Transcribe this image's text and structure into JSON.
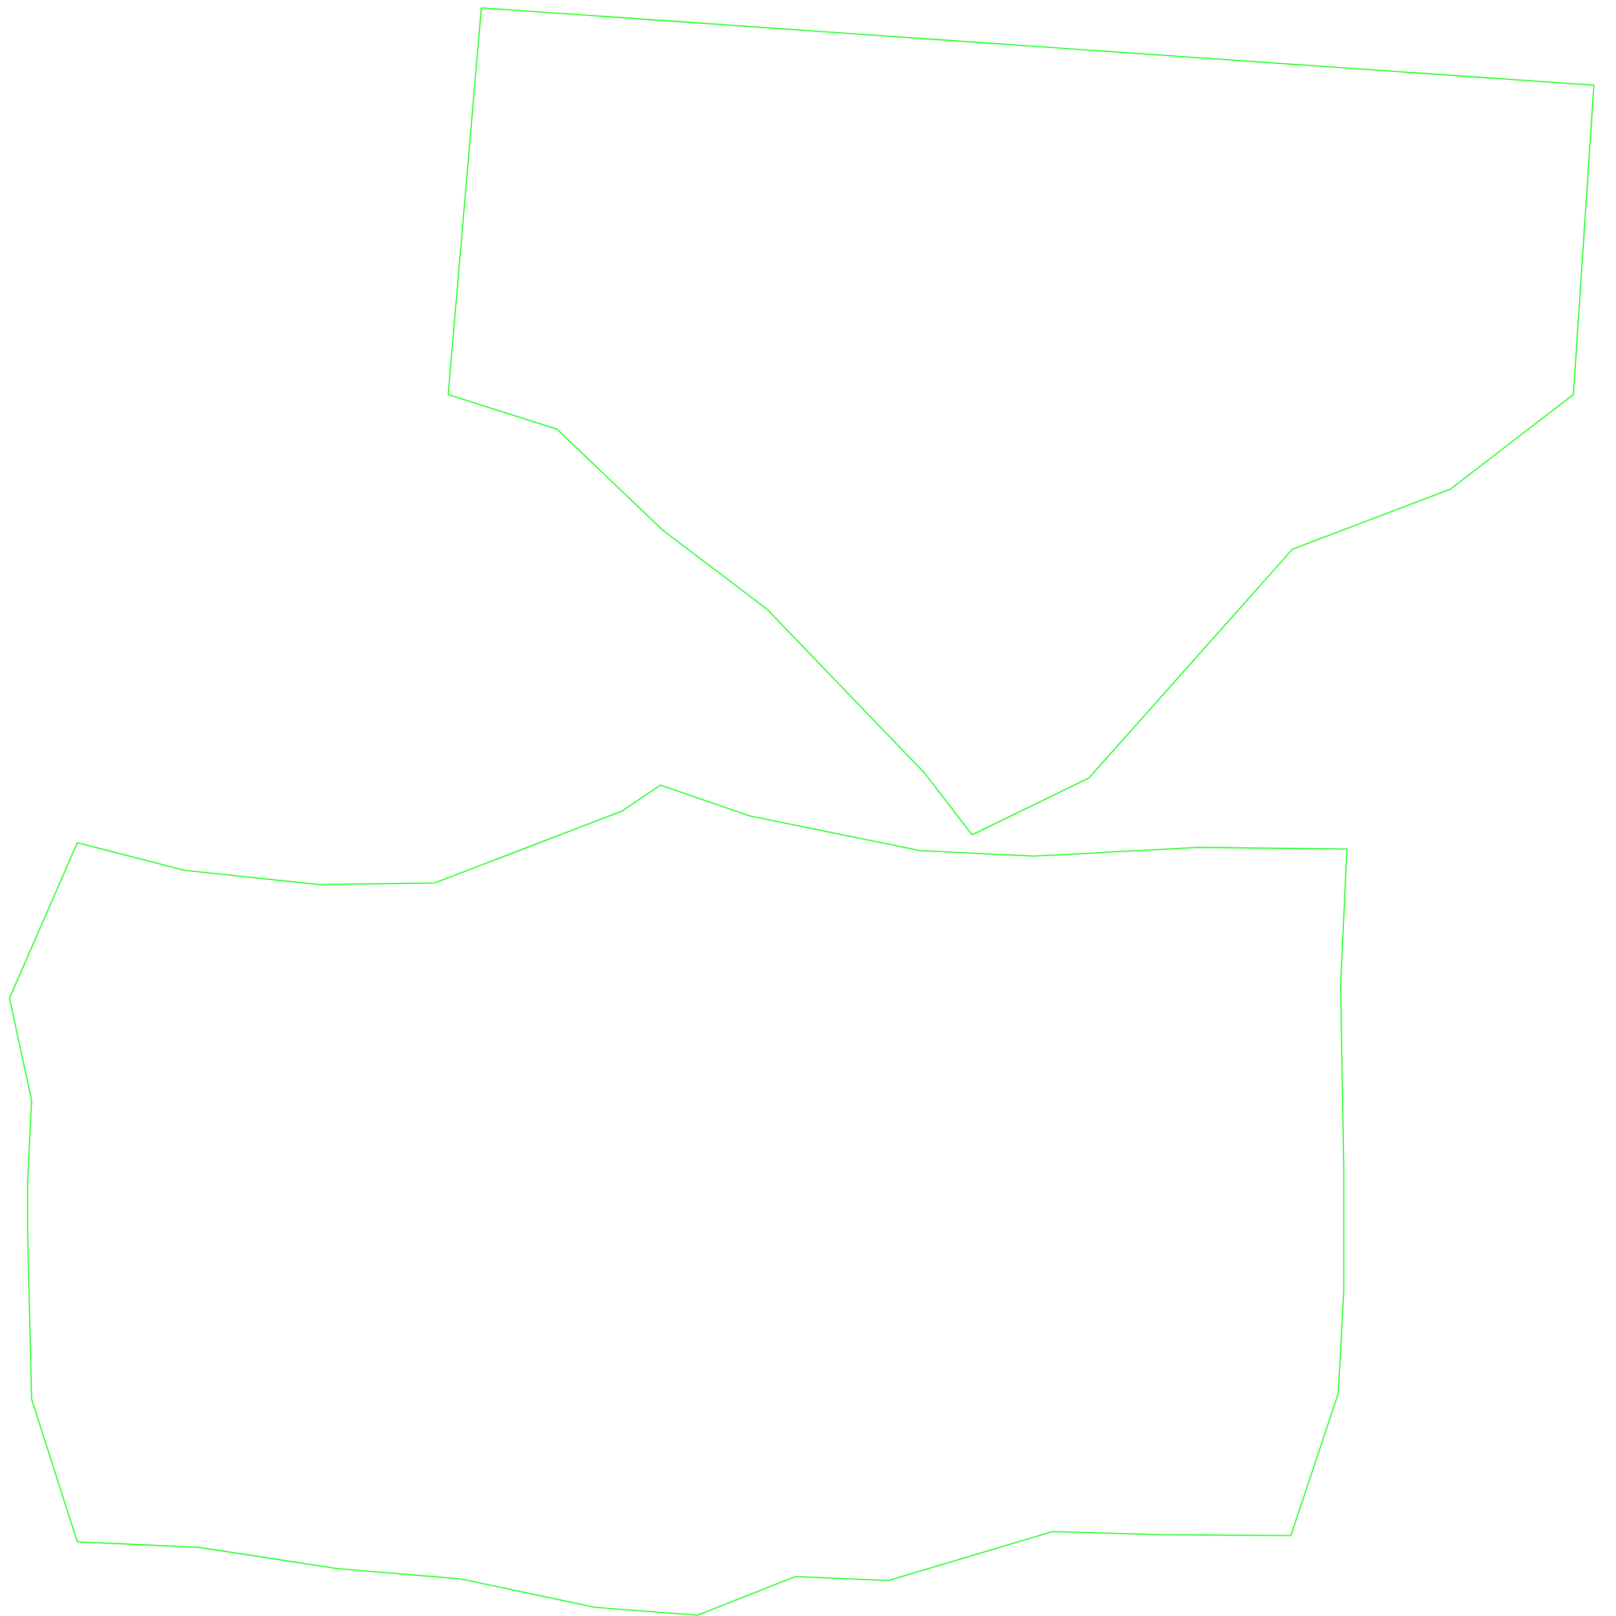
{
  "shapes": [
    {
      "name": "upper-polygon"
    },
    {
      "name": "lower-polygon"
    }
  ],
  "style": {
    "background": "#ffffff",
    "stroke_color": "#00ff00"
  }
}
